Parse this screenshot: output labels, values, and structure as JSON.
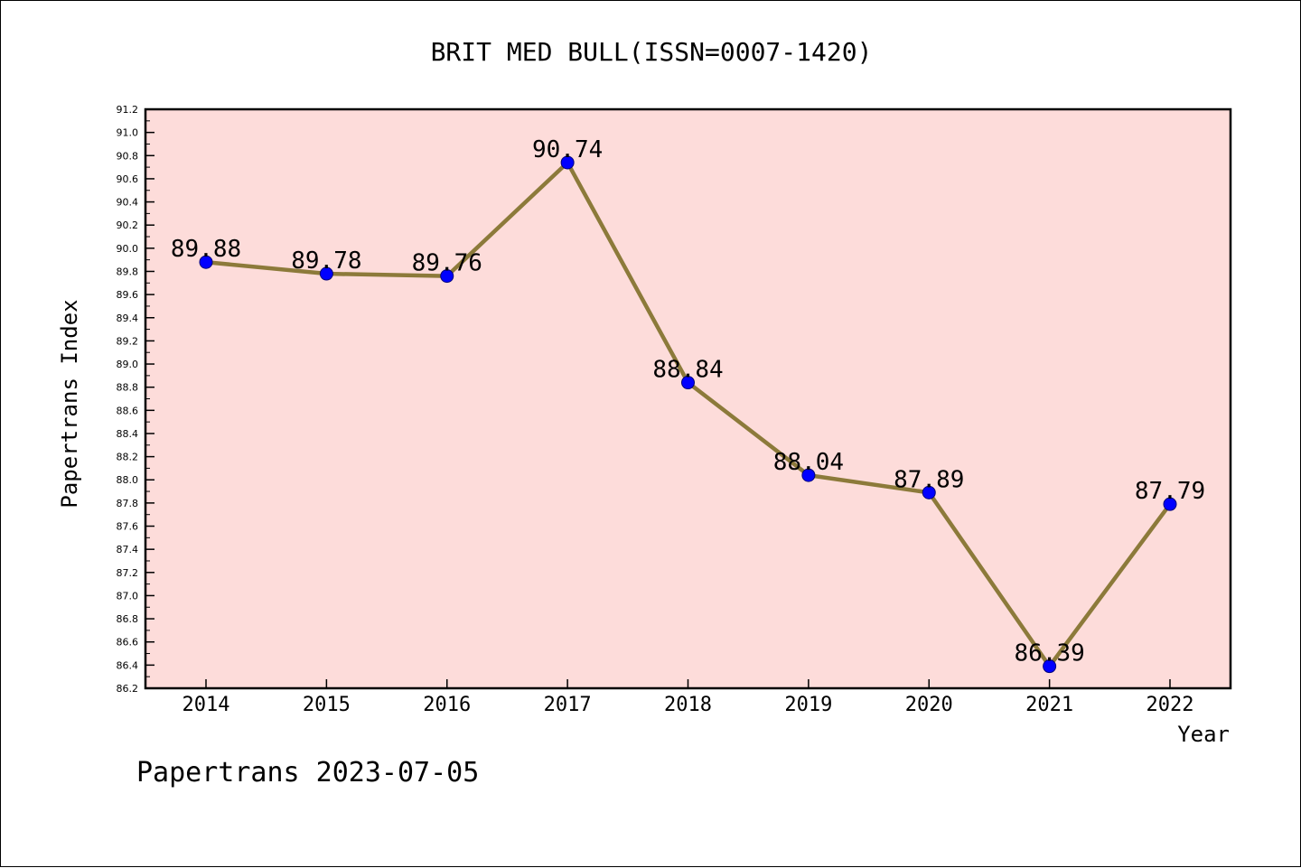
{
  "chart_data": {
    "type": "line",
    "title": "BRIT MED BULL(ISSN=0007-1420)",
    "xlabel": "Year",
    "ylabel": "Papertrans Index",
    "categories": [
      "2014",
      "2015",
      "2016",
      "2017",
      "2018",
      "2019",
      "2020",
      "2021",
      "2022"
    ],
    "values": [
      89.88,
      89.78,
      89.76,
      90.74,
      88.84,
      88.04,
      87.89,
      86.39,
      87.79
    ],
    "data_labels": [
      "89.88",
      "89.78",
      "89.76",
      "90.74",
      "88.84",
      "88.04",
      "87.89",
      "86.39",
      "87.79"
    ],
    "ylim": [
      86.2,
      91.2
    ],
    "yticks": [
      "86.2",
      "86.4",
      "86.6",
      "86.8",
      "87.0",
      "87.2",
      "87.4",
      "87.6",
      "87.8",
      "88.0",
      "88.2",
      "88.4",
      "88.6",
      "88.8",
      "89.0",
      "89.2",
      "89.4",
      "89.6",
      "89.8",
      "90.0",
      "90.2",
      "90.4",
      "90.6",
      "90.8",
      "91.0",
      "91.2"
    ],
    "grid": false,
    "colors": {
      "line": "#8c7a3a",
      "marker": "#0000ff",
      "plot_background": "#fddcda",
      "axes": "#000000"
    }
  },
  "footer": {
    "text": "Papertrans 2023-07-05"
  }
}
